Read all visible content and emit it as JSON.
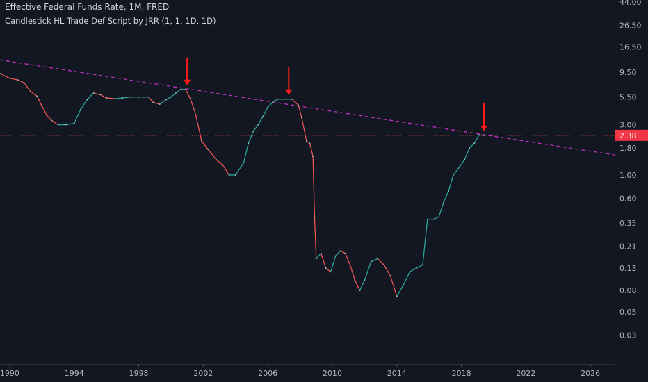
{
  "chart_data": {
    "type": "line",
    "title": "Effective Federal Funds Rate, 1M, FRED",
    "subtitle": "Candlestick HL Trade Def Script by JRR (1, 1, 1D, 1D)",
    "xlabel": "",
    "ylabel": "",
    "y_scale": "log",
    "x_range": [
      1989.4,
      2027.5
    ],
    "y_range": [
      0.016,
      46
    ],
    "grid": false,
    "x_ticks": [
      "1990",
      "1994",
      "1998",
      "2002",
      "2006",
      "2010",
      "2014",
      "2018",
      "2022",
      "2026"
    ],
    "x_tick_values": [
      1990,
      1994,
      1998,
      2002,
      2006,
      2010,
      2014,
      2018,
      2022,
      2026
    ],
    "y_ticks": [
      "44.00",
      "26.50",
      "16.50",
      "9.50",
      "5.50",
      "3.00",
      "1.80",
      "1.00",
      "0.60",
      "0.35",
      "0.21",
      "0.13",
      "0.08",
      "0.05",
      "0.03"
    ],
    "y_tick_values": [
      44.0,
      26.5,
      16.5,
      9.5,
      5.5,
      3.0,
      1.8,
      1.0,
      0.6,
      0.35,
      0.21,
      0.13,
      0.08,
      0.05,
      0.03
    ],
    "series": [
      {
        "x": [
          1989.4,
          1990.0,
          1990.5,
          1990.9,
          1991.3,
          1991.7,
          1992.0,
          1992.3,
          1992.6,
          1993.0,
          1993.5,
          1994.0,
          1994.4,
          1994.8,
          1995.2,
          1995.6,
          1996.0,
          1996.5,
          1997.0,
          1997.5,
          1998.0,
          1998.6,
          1998.9,
          1999.3,
          1999.7,
          2000.0,
          2000.3,
          2000.6,
          2000.9,
          2001.2,
          2001.5,
          2001.9,
          2002.3,
          2002.8,
          2003.2,
          2003.6,
          2004.0,
          2004.5,
          2004.8,
          2005.1,
          2005.4,
          2005.7,
          2006.0,
          2006.3,
          2006.6,
          2007.0,
          2007.5,
          2007.9,
          2008.1,
          2008.4,
          2008.6,
          2008.8,
          2008.9,
          2009.0,
          2009.3,
          2009.6,
          2009.9,
          2010.2,
          2010.5,
          2010.8,
          2011.1,
          2011.4,
          2011.7,
          2012.0,
          2012.4,
          2012.8,
          2013.2,
          2013.6,
          2014.0,
          2014.4,
          2014.8,
          2015.2,
          2015.6,
          2015.9,
          2016.3,
          2016.6,
          2016.9,
          2017.2,
          2017.5,
          2017.9,
          2018.2,
          2018.5,
          2018.8,
          2019.1,
          2019.4
        ],
        "y": [
          9.2,
          8.3,
          8.0,
          7.5,
          6.2,
          5.6,
          4.5,
          3.7,
          3.3,
          3.0,
          3.0,
          3.1,
          4.2,
          5.2,
          6.0,
          5.8,
          5.4,
          5.3,
          5.4,
          5.5,
          5.5,
          5.5,
          4.9,
          4.7,
          5.2,
          5.5,
          6.0,
          6.5,
          6.5,
          5.3,
          3.9,
          2.1,
          1.75,
          1.4,
          1.25,
          1.0,
          1.0,
          1.3,
          2.0,
          2.6,
          3.0,
          3.6,
          4.4,
          4.9,
          5.25,
          5.25,
          5.25,
          4.6,
          3.5,
          2.1,
          2.0,
          1.5,
          0.4,
          0.16,
          0.18,
          0.13,
          0.12,
          0.17,
          0.19,
          0.18,
          0.14,
          0.1,
          0.08,
          0.1,
          0.15,
          0.16,
          0.14,
          0.11,
          0.07,
          0.09,
          0.12,
          0.13,
          0.14,
          0.38,
          0.38,
          0.4,
          0.55,
          0.7,
          1.0,
          1.2,
          1.4,
          1.8,
          2.0,
          2.4,
          2.38
        ]
      }
    ],
    "trendline": {
      "from": [
        1989.4,
        12.4
      ],
      "to": [
        2027.5,
        1.55
      ]
    },
    "horizontal_line": 2.38,
    "last_value_label": "2.38",
    "arrows": [
      {
        "x": 2001.0,
        "y": 6.5
      },
      {
        "x": 2007.3,
        "y": 5.25
      },
      {
        "x": 2019.4,
        "y": 2.38
      }
    ],
    "colors": {
      "background": "#131722",
      "series_up": "#26a69a",
      "series_down": "#ef5350",
      "trendline": "#cc33cc",
      "horizontal_line": "#ef5350",
      "arrow": "#ff1a1a",
      "axis_text": "#b2b5be",
      "axis_line": "#2a2e39",
      "badge": "#f23645"
    }
  }
}
